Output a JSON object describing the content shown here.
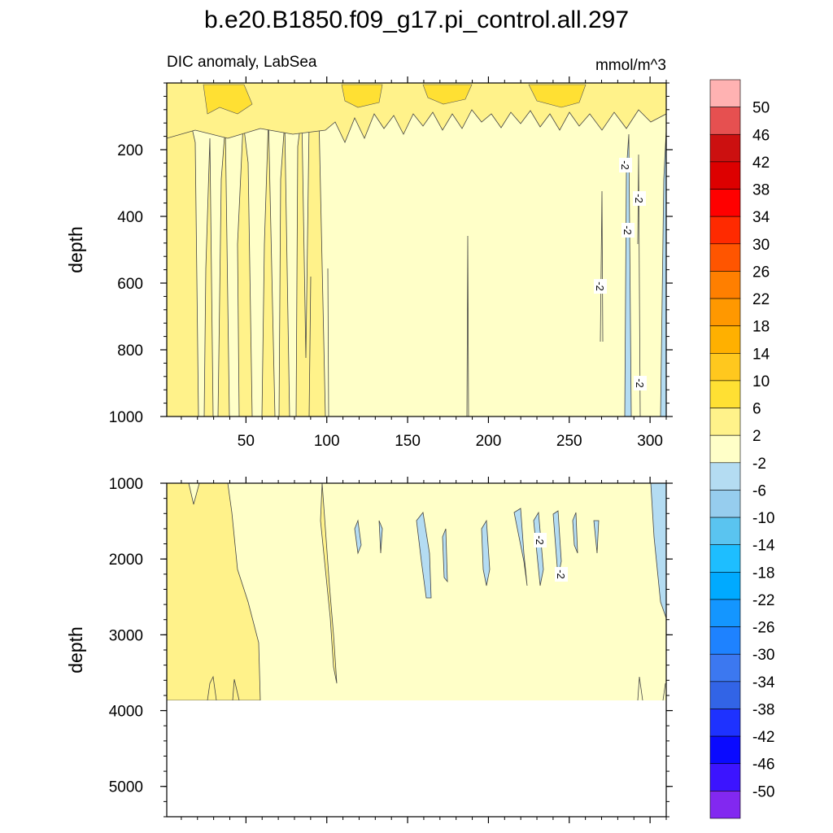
{
  "chart_data": {
    "type": "contour",
    "title": "b.e20.B1850.f09_g17.pi_control.all.297",
    "subtitle_left": "DIC anomaly, LabSea",
    "subtitle_right": "mmol/m^3",
    "xlim": [
      1,
      310
    ],
    "x_ticks": [
      50,
      100,
      150,
      200,
      250,
      300
    ],
    "panels": [
      {
        "name": "upper",
        "ylabel": "depth",
        "ylim": [
          0,
          1000
        ],
        "y_ticks": [
          200,
          400,
          600,
          800,
          1000
        ],
        "dominant_levels": [
          "-2 to 2",
          "2 to 6"
        ],
        "contour_labels": [
          "-2",
          "-2",
          "-2",
          "-2",
          "-2"
        ]
      },
      {
        "name": "lower",
        "ylabel": "depth",
        "ylim": [
          1000,
          5400
        ],
        "y_ticks": [
          1000,
          2000,
          3000,
          4000,
          5000
        ],
        "data_bottom_depth": 3850,
        "dominant_levels": [
          "-2 to 2",
          "2 to 6",
          "-6 to -2"
        ],
        "contour_labels": [
          "-2",
          "-2"
        ]
      }
    ],
    "colorbar": {
      "labels": [
        "50",
        "46",
        "42",
        "38",
        "34",
        "30",
        "26",
        "22",
        "18",
        "14",
        "10",
        "6",
        "2",
        "-2",
        "-6",
        "-10",
        "-14",
        "-18",
        "-22",
        "-26",
        "-30",
        "-34",
        "-38",
        "-42",
        "-46",
        "-50"
      ],
      "colors": [
        "#ffb2b2",
        "#e65050",
        "#cc1010",
        "#dd0000",
        "#ff0000",
        "#ff2a00",
        "#ff5500",
        "#ff7f00",
        "#ff9800",
        "#ffb000",
        "#ffc81e",
        "#ffe033",
        "#fff28a",
        "#ffffc8",
        "#b4dcf2",
        "#96cdee",
        "#5ac4f0",
        "#1ebeff",
        "#00aaff",
        "#1496ff",
        "#1e82ff",
        "#3c78f0",
        "#3264e6",
        "#1e32ff",
        "#0a0aff",
        "#3c14ff",
        "#8228f0"
      ]
    }
  }
}
